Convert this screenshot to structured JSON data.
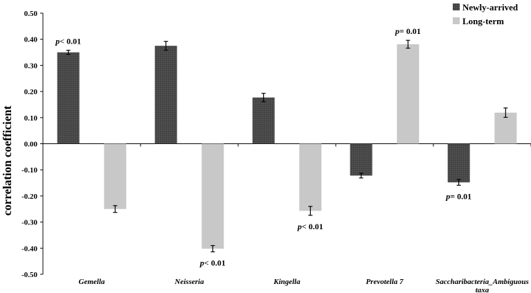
{
  "chart_data": {
    "type": "bar",
    "title": "",
    "xlabel": "",
    "ylabel": "correlation coefficient",
    "ylim": [
      -0.5,
      0.5
    ],
    "yticks": [
      "0.50",
      "0.40",
      "0.30",
      "0.20",
      "0.10",
      "0.00",
      "-0.10",
      "-0.20",
      "-0.30",
      "-0.40",
      "-0.50"
    ],
    "categories": [
      [
        "Gemella"
      ],
      [
        "Neisseria"
      ],
      [
        "Kingella"
      ],
      [
        "Prevotella 7"
      ],
      [
        "Saccharibacteria_Ambiguous",
        "taxa"
      ]
    ],
    "series": [
      {
        "name": "Newly-arrived",
        "color": "#4a4a4a",
        "values": [
          0.35,
          0.375,
          0.177,
          -0.122,
          -0.148
        ],
        "errors": [
          0.008,
          0.017,
          0.016,
          0.009,
          0.011
        ]
      },
      {
        "name": "Long-term",
        "color": "#c8c8c8",
        "values": [
          -0.25,
          -0.402,
          -0.257,
          0.381,
          0.119
        ],
        "errors": [
          0.013,
          0.012,
          0.017,
          0.015,
          0.018
        ]
      }
    ],
    "annotations": [
      {
        "category": 0,
        "series": 0,
        "text": "< 0.01"
      },
      {
        "category": 1,
        "series": 1,
        "text": "< 0.01"
      },
      {
        "category": 2,
        "series": 1,
        "text": "< 0.01"
      },
      {
        "category": 3,
        "series": 1,
        "text": "= 0.01"
      },
      {
        "category": 4,
        "series": 0,
        "text": "= 0.01"
      }
    ],
    "annotation_prefix": "p",
    "legend_position": "top-right",
    "grid": false
  }
}
